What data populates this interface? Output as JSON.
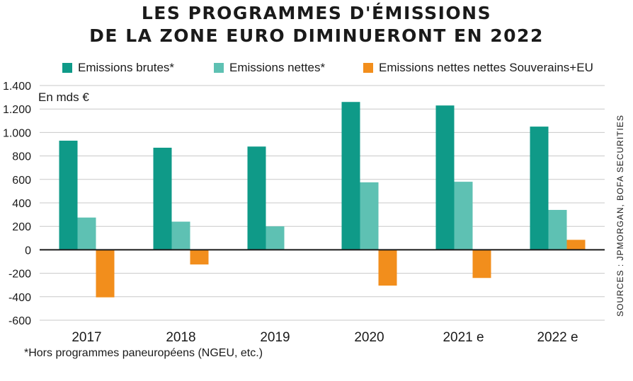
{
  "title_lines": [
    "LES PROGRAMMES D'ÉMISSIONS",
    "DE LA ZONE EURO DIMINUERONT EN 2022"
  ],
  "unit_label": "En mds €",
  "footnote": "*Hors programmes paneuropéens (NGEU, etc.)",
  "source": "SOURCES : JPMORGAN, BOFA SECURITIES",
  "legend": [
    {
      "label": "Emissions brutes*",
      "color": "#0f9a88"
    },
    {
      "label": "Emissions nettes*",
      "color": "#5ec1b3"
    },
    {
      "label": "Emissions nettes nettes Souverains+EU",
      "color": "#f28e1c"
    }
  ],
  "chart_data": {
    "type": "bar",
    "categories": [
      "2017",
      "2018",
      "2019",
      "2020",
      "2021 e",
      "2022 e"
    ],
    "series": [
      {
        "name": "Emissions brutes*",
        "color": "#0f9a88",
        "values": [
          930,
          870,
          880,
          1260,
          1230,
          1050
        ]
      },
      {
        "name": "Emissions nettes*",
        "color": "#5ec1b3",
        "values": [
          275,
          240,
          200,
          575,
          580,
          340
        ]
      },
      {
        "name": "Emissions nettes nettes Souverains+EU",
        "color": "#f28e1c",
        "values": [
          -405,
          -125,
          null,
          -305,
          -240,
          85
        ]
      }
    ],
    "ylim": [
      -600,
      1400
    ],
    "yticks": [
      -600,
      -400,
      -200,
      0,
      200,
      400,
      600,
      800,
      1000,
      1200,
      1400
    ],
    "ytick_labels": [
      "-600",
      "-400",
      "-200",
      "0",
      "200",
      "400",
      "600",
      "800",
      "1.000",
      "1.200",
      "1.400"
    ],
    "grid": true,
    "legend_position": "top"
  }
}
